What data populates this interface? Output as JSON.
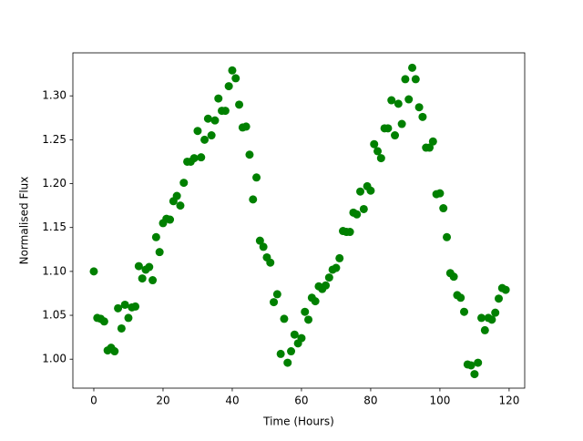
{
  "chart_data": {
    "type": "scatter",
    "xlabel": "Time (Hours)",
    "ylabel": "Normalised Flux",
    "series": [
      {
        "color": "#008000",
        "x": [
          0,
          1,
          2,
          3,
          4,
          5,
          6,
          7,
          8,
          9,
          10,
          11,
          12,
          13,
          14,
          15,
          16,
          17,
          18,
          19,
          20,
          21,
          22,
          23,
          24,
          25,
          26,
          27,
          28,
          29,
          30,
          31,
          32,
          33,
          34,
          35,
          36,
          37,
          38,
          39,
          40,
          41,
          42,
          43,
          44,
          45,
          46,
          47,
          48,
          49,
          50,
          51,
          52,
          53,
          54,
          55,
          56,
          57,
          58,
          59,
          60,
          61,
          62,
          63,
          64,
          65,
          66,
          67,
          68,
          69,
          70,
          71,
          72,
          73,
          74,
          75,
          76,
          77,
          78,
          79,
          80,
          81,
          82,
          83,
          84,
          85,
          86,
          87,
          88,
          89,
          90,
          91,
          92,
          93,
          94,
          95,
          96,
          97,
          98,
          99,
          100,
          101,
          102,
          103,
          104,
          105,
          106,
          107,
          108,
          109,
          110,
          111,
          112,
          113,
          114,
          115,
          116,
          117,
          118,
          119
        ],
        "values": [
          1.1,
          1.047,
          1.046,
          1.043,
          1.01,
          1.013,
          1.009,
          1.058,
          1.035,
          1.062,
          1.047,
          1.059,
          1.06,
          1.106,
          1.092,
          1.102,
          1.105,
          1.09,
          1.139,
          1.122,
          1.155,
          1.16,
          1.159,
          1.18,
          1.186,
          1.175,
          1.201,
          1.225,
          1.225,
          1.229,
          1.26,
          1.23,
          1.25,
          1.274,
          1.255,
          1.272,
          1.297,
          1.283,
          1.283,
          1.311,
          1.329,
          1.32,
          1.29,
          1.264,
          1.265,
          1.233,
          1.182,
          1.207,
          1.135,
          1.128,
          1.116,
          1.11,
          1.065,
          1.074,
          1.006,
          1.046,
          0.996,
          1.009,
          1.028,
          1.018,
          1.024,
          1.054,
          1.045,
          1.07,
          1.066,
          1.083,
          1.08,
          1.084,
          1.093,
          1.102,
          1.104,
          1.115,
          1.146,
          1.145,
          1.145,
          1.167,
          1.165,
          1.191,
          1.171,
          1.197,
          1.192,
          1.245,
          1.237,
          1.229,
          1.263,
          1.263,
          1.295,
          1.255,
          1.291,
          1.268,
          1.319,
          1.296,
          1.332,
          1.319,
          1.287,
          1.276,
          1.241,
          1.241,
          1.248,
          1.188,
          1.189,
          1.172,
          1.139,
          1.098,
          1.094,
          1.073,
          1.07,
          1.054,
          0.994,
          0.993,
          0.983,
          0.996,
          1.047,
          1.033,
          1.047,
          1.045,
          1.053,
          1.069,
          1.081,
          1.079
        ]
      }
    ],
    "xlim": [
      -6.05,
      124.5
    ],
    "ylim": [
      0.967,
      1.349
    ],
    "xticks": [
      0,
      20,
      40,
      60,
      80,
      100,
      120
    ],
    "yticks": [
      {
        "value": 1.0,
        "label": "1.00"
      },
      {
        "value": 1.05,
        "label": "1.05"
      },
      {
        "value": 1.1,
        "label": "1.10"
      },
      {
        "value": 1.15,
        "label": "1.15"
      },
      {
        "value": 1.2,
        "label": "1.20"
      },
      {
        "value": 1.25,
        "label": "1.25"
      },
      {
        "value": 1.3,
        "label": "1.30"
      }
    ]
  }
}
